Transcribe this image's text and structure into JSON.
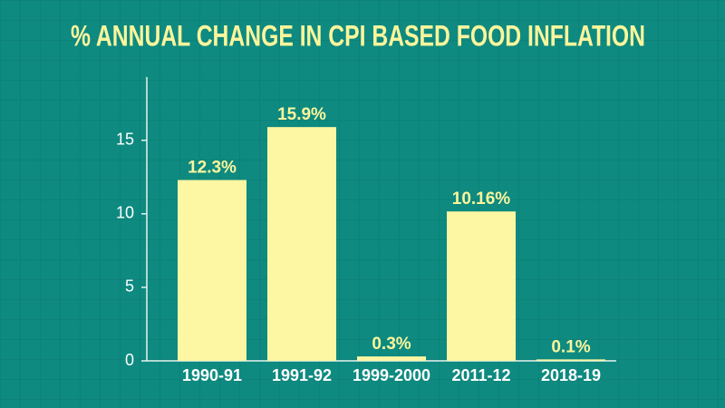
{
  "chart_data": {
    "type": "bar",
    "title": "% ANNUAL CHANGE IN CPI BASED FOOD INFLATION",
    "categories": [
      "1990-91",
      "1991-92",
      "1999-2000",
      "2011-12",
      "2018-19"
    ],
    "values": [
      12.3,
      15.9,
      0.3,
      10.16,
      0.1
    ],
    "value_labels": [
      "12.3%",
      "15.9%",
      "0.3%",
      "10.16%",
      "0.1%"
    ],
    "color": "#fdf6a3",
    "ylim": [
      0,
      19.3
    ],
    "yticks": [
      0,
      5,
      10,
      15
    ]
  }
}
